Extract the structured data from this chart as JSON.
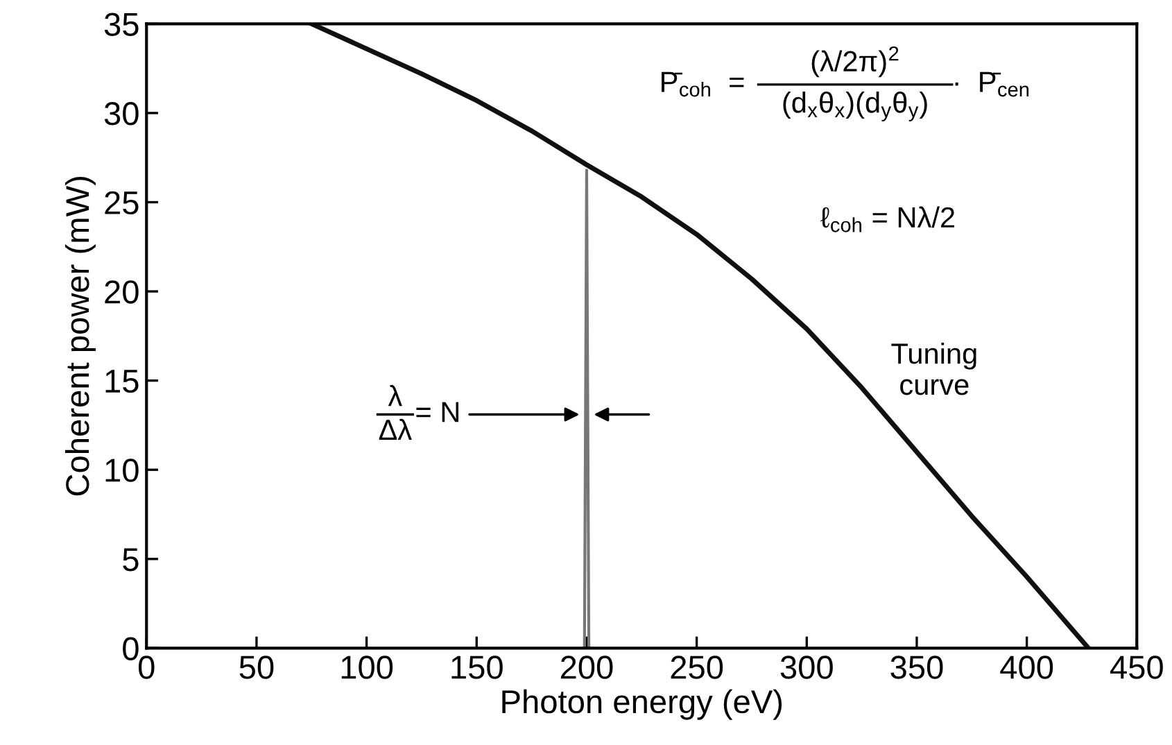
{
  "chart_data": {
    "type": "line",
    "xlabel": "Photon energy (eV)",
    "ylabel": "Coherent power (mW)",
    "xlim": [
      0,
      450
    ],
    "xticks": [
      0,
      50,
      100,
      150,
      200,
      250,
      300,
      350,
      400,
      450
    ],
    "ylim": [
      0,
      35
    ],
    "yticks": [
      0,
      5,
      10,
      15,
      20,
      25,
      30,
      35
    ],
    "series": [
      {
        "color": "#111111",
        "x": [
          75,
          100,
          125,
          150,
          175,
          200,
          225,
          250,
          275,
          300,
          325,
          350,
          375,
          400,
          428
        ],
        "values": [
          35,
          33.6,
          32.2,
          30.7,
          29.0,
          27.1,
          25.3,
          23.2,
          20.7,
          17.9,
          14.6,
          11.0,
          7.4,
          4.0,
          0
        ]
      },
      {
        "color": "#777777",
        "x": [
          199,
          200,
          201
        ],
        "values": [
          0,
          26.8,
          0
        ]
      }
    ],
    "annotations": [
      "P̄$_{coh}$  =",
      "(λ/2π)$^{2}$",
      "(d$_{x}$θ$_{x}$)(d$_{y}$θ$_{y}$)",
      "·  P̄$_{cen}$",
      "ℓ$_{coh}$ = Nλ/2",
      "Tuning\ncurve",
      "λ",
      "Δλ",
      "= N"
    ],
    "grid": false,
    "legend": false
  }
}
